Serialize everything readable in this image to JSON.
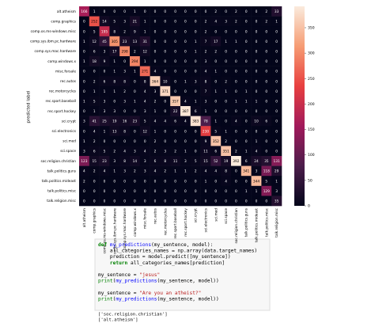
{
  "chart_data": {
    "type": "heatmap",
    "ylabel": "predicted label",
    "categories": [
      "alt.atheism",
      "comp.graphics",
      "comp.os.ms-windows.misc",
      "comp.sys.ibm.pc.hardware",
      "comp.sys.mac.hardware",
      "comp.windows.x",
      "misc.forsale",
      "rec.autos",
      "rec.motorcycles",
      "rec.sport.baseball",
      "rec.sport.hockey",
      "sci.crypt",
      "sci.electronics",
      "sci.med",
      "sci.space",
      "soc.religion.christian",
      "talk.politics.guns",
      "talk.politics.mideast",
      "talk.politics.misc",
      "talk.religion.misc"
    ],
    "values": [
      [
        166,
        1,
        0,
        0,
        0,
        1,
        0,
        0,
        0,
        0,
        0,
        0,
        0,
        2,
        0,
        2,
        0,
        0,
        2,
        33
      ],
      [
        0,
        252,
        14,
        5,
        3,
        21,
        1,
        0,
        0,
        0,
        0,
        0,
        2,
        4,
        3,
        2,
        0,
        0,
        2,
        1
      ],
      [
        0,
        5,
        195,
        8,
        2,
        9,
        1,
        0,
        0,
        0,
        0,
        0,
        2,
        0,
        0,
        0,
        0,
        0,
        0,
        0
      ],
      [
        1,
        12,
        45,
        305,
        23,
        13,
        31,
        0,
        0,
        0,
        0,
        1,
        7,
        17,
        1,
        1,
        0,
        0,
        0,
        0
      ],
      [
        0,
        6,
        3,
        17,
        298,
        2,
        12,
        0,
        0,
        0,
        0,
        1,
        2,
        2,
        0,
        0,
        0,
        0,
        0,
        0
      ],
      [
        1,
        18,
        9,
        1,
        0,
        294,
        1,
        0,
        0,
        0,
        0,
        0,
        3,
        0,
        0,
        0,
        0,
        0,
        0,
        0
      ],
      [
        0,
        0,
        0,
        1,
        3,
        1,
        271,
        4,
        0,
        0,
        0,
        0,
        4,
        1,
        0,
        0,
        0,
        0,
        0,
        0
      ],
      [
        0,
        2,
        6,
        8,
        8,
        0,
        8,
        364,
        10,
        0,
        1,
        3,
        8,
        0,
        2,
        0,
        0,
        0,
        0,
        0
      ],
      [
        0,
        1,
        1,
        1,
        2,
        0,
        4,
        3,
        371,
        0,
        0,
        0,
        7,
        1,
        1,
        0,
        1,
        0,
        0,
        0
      ],
      [
        1,
        5,
        3,
        0,
        3,
        1,
        4,
        2,
        0,
        357,
        4,
        1,
        3,
        0,
        0,
        1,
        1,
        1,
        0,
        0
      ],
      [
        0,
        1,
        3,
        3,
        0,
        0,
        3,
        1,
        0,
        22,
        387,
        6,
        1,
        0,
        0,
        0,
        0,
        0,
        0,
        0
      ],
      [
        3,
        41,
        25,
        19,
        16,
        23,
        5,
        4,
        4,
        6,
        4,
        383,
        78,
        1,
        0,
        4,
        0,
        10,
        6,
        0
      ],
      [
        0,
        4,
        1,
        13,
        8,
        0,
        12,
        1,
        0,
        0,
        0,
        0,
        230,
        5,
        1,
        0,
        0,
        0,
        0,
        0
      ],
      [
        1,
        2,
        0,
        0,
        0,
        0,
        0,
        2,
        0,
        0,
        0,
        0,
        9,
        352,
        2,
        0,
        0,
        1,
        0,
        0
      ],
      [
        3,
        6,
        5,
        2,
        4,
        3,
        4,
        2,
        3,
        2,
        1,
        0,
        11,
        6,
        351,
        2,
        1,
        4,
        0,
        0
      ],
      [
        123,
        15,
        23,
        3,
        8,
        14,
        3,
        6,
        8,
        11,
        3,
        5,
        15,
        52,
        19,
        392,
        6,
        24,
        35,
        131
      ],
      [
        4,
        2,
        4,
        1,
        3,
        2,
        3,
        4,
        2,
        1,
        1,
        2,
        4,
        4,
        8,
        0,
        341,
        3,
        118,
        29
      ],
      [
        2,
        0,
        0,
        0,
        0,
        0,
        0,
        0,
        0,
        0,
        0,
        0,
        1,
        0,
        4,
        0,
        0,
        344,
        5,
        1
      ],
      [
        0,
        0,
        0,
        0,
        0,
        0,
        0,
        0,
        0,
        0,
        0,
        0,
        0,
        0,
        0,
        0,
        1,
        1,
        129,
        3
      ],
      [
        0,
        0,
        0,
        0,
        0,
        0,
        0,
        0,
        0,
        0,
        0,
        0,
        0,
        0,
        0,
        0,
        0,
        0,
        0,
        35
      ]
    ],
    "colormap": [
      "#03051a",
      "#4c1d4b",
      "#a11a5b",
      "#e83f3f",
      "#f69c73",
      "#faebdd"
    ],
    "clim": [
      0,
      392
    ],
    "cticks": [
      0,
      50,
      100,
      150,
      200,
      250,
      300,
      350
    ]
  },
  "code": {
    "blocks": [
      [
        "def my_predictions(my_sentence, model):",
        "    all_categories_names = np.array(data.target_names)",
        "    prediction = model.predict([my_sentence])",
        "    return all_categories_names[prediction]"
      ],
      [
        "my_sentence = \"jesus\"",
        "print(my_predictions(my_sentence, model))"
      ],
      [
        "my_sentence = \"Are you an atheist?\"",
        "print(my_predictions(my_sentence, model))"
      ]
    ],
    "output": [
      "['soc.religion.christian']",
      "['alt.atheism']"
    ]
  }
}
